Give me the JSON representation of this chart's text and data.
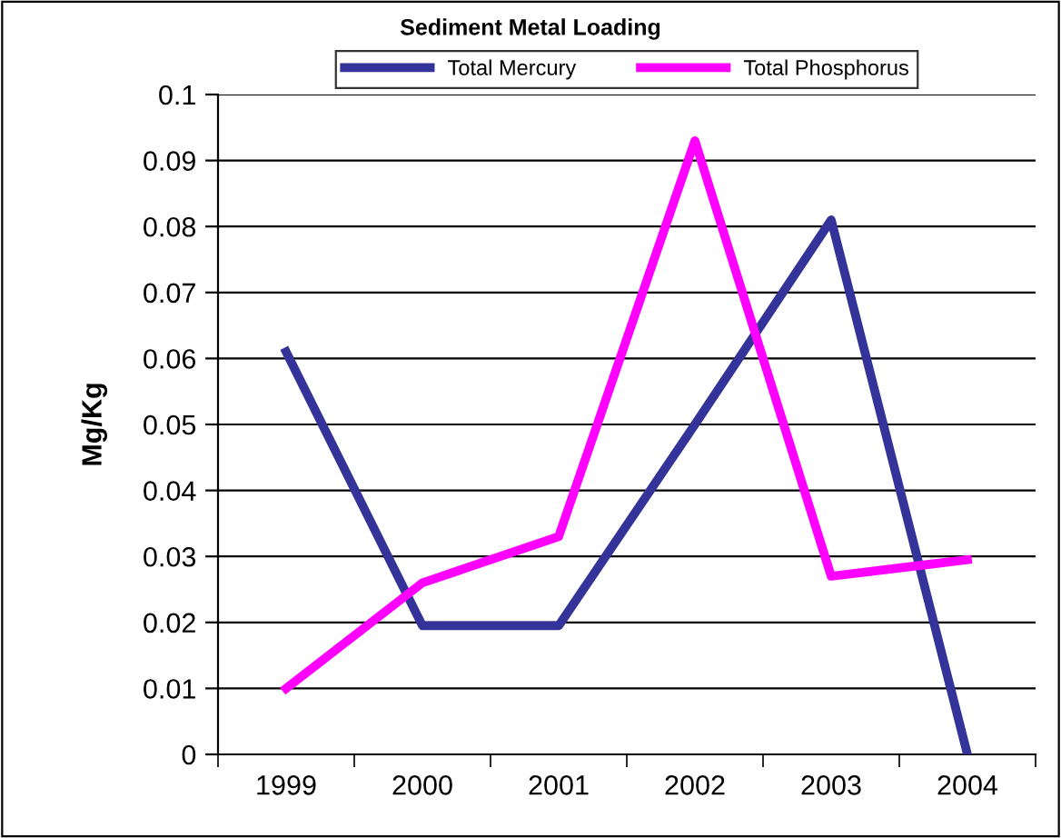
{
  "chart_data": {
    "type": "line",
    "title": "Sediment Metal Loading",
    "ylabel": "Mg/Kg",
    "categories": [
      "1999",
      "2000",
      "2001",
      "2002",
      "2003",
      "2004"
    ],
    "series": [
      {
        "name": "Total Mercury",
        "color": "#333399",
        "values": [
          0.061,
          0.0195,
          0.0195,
          0.05,
          0.081,
          0
        ]
      },
      {
        "name": "Total Phosphorus",
        "color": "#ff00ff",
        "values": [
          0.01,
          0.026,
          0.033,
          0.093,
          0.027,
          0.0295
        ]
      }
    ],
    "ylim": [
      0,
      0.1
    ],
    "yticks": [
      0,
      0.01,
      0.02,
      0.03,
      0.04,
      0.05,
      0.06,
      0.07,
      0.08,
      0.09,
      0.1
    ],
    "grid": "y",
    "legend": "top",
    "marker": "none",
    "line_style": "solid"
  }
}
